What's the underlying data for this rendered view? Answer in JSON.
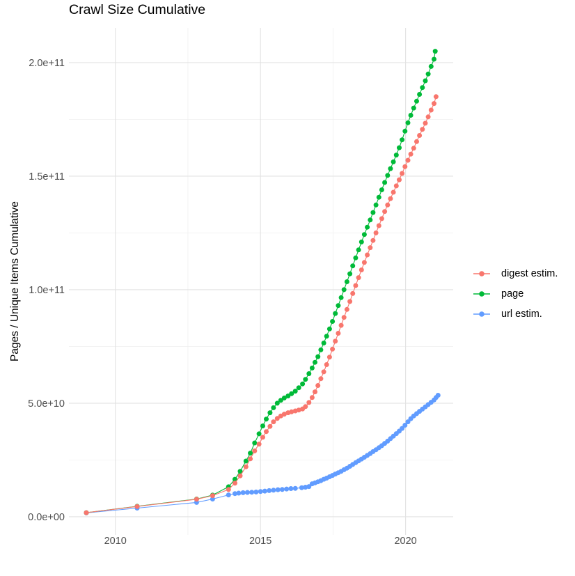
{
  "chart_data": {
    "type": "line",
    "title": "Crawl Size Cumulative",
    "ylabel": "Pages / Unique Items Cumulative",
    "xlabel": "",
    "grid": "on",
    "legend_position": "right",
    "value_unit": "1e9",
    "x_axis": {
      "range": [
        2008.4,
        2021.64
      ],
      "ticks": [
        {
          "value": 2010,
          "label": "2010"
        },
        {
          "value": 2015,
          "label": "2015"
        },
        {
          "value": 2020,
          "label": "2020"
        }
      ],
      "minor": [
        2012.5,
        2017.5
      ]
    },
    "y_axis": {
      "range": [
        -8,
        215.3
      ],
      "ticks": [
        {
          "value": 0,
          "label": "0.0e+00"
        },
        {
          "value": 50,
          "label": "5.0e+10"
        },
        {
          "value": 100,
          "label": "1.0e+11"
        },
        {
          "value": 150,
          "label": "1.5e+11"
        },
        {
          "value": 200,
          "label": "2.0e+11"
        }
      ],
      "minor": [
        25,
        75,
        125,
        175
      ]
    },
    "series": [
      {
        "name": "digest estim.",
        "color": "#F8766D",
        "points": [
          [
            2009.0,
            1.8
          ],
          [
            2010.75,
            4.5
          ],
          [
            2012.8,
            7.7
          ],
          [
            2013.35,
            9.3
          ],
          [
            2013.9,
            12.0
          ],
          [
            2014.12,
            14.8
          ],
          [
            2014.3,
            18.0
          ],
          [
            2014.5,
            22.0
          ],
          [
            2014.65,
            25.5
          ],
          [
            2014.8,
            29.0
          ],
          [
            2014.95,
            32.0
          ],
          [
            2015.08,
            35.0
          ],
          [
            2015.2,
            37.5
          ],
          [
            2015.33,
            39.8
          ],
          [
            2015.45,
            41.8
          ],
          [
            2015.58,
            43.3
          ],
          [
            2015.7,
            44.4
          ],
          [
            2015.82,
            45.2
          ],
          [
            2015.95,
            45.8
          ],
          [
            2016.07,
            46.2
          ],
          [
            2016.2,
            46.6
          ],
          [
            2016.32,
            47.0
          ],
          [
            2016.45,
            47.5
          ],
          [
            2016.55,
            48.5
          ],
          [
            2016.67,
            50.3
          ],
          [
            2016.78,
            52.5
          ],
          [
            2016.88,
            55.0
          ],
          [
            2016.98,
            57.8
          ],
          [
            2017.08,
            60.8
          ],
          [
            2017.18,
            63.8
          ],
          [
            2017.28,
            67.0
          ],
          [
            2017.38,
            70.3
          ],
          [
            2017.48,
            73.8
          ],
          [
            2017.58,
            77.3
          ],
          [
            2017.68,
            80.8
          ],
          [
            2017.78,
            84.3
          ],
          [
            2017.88,
            87.8
          ],
          [
            2017.98,
            91.3
          ],
          [
            2018.08,
            94.8
          ],
          [
            2018.18,
            98.3
          ],
          [
            2018.28,
            101.8
          ],
          [
            2018.38,
            105.3
          ],
          [
            2018.48,
            108.7
          ],
          [
            2018.58,
            112.0
          ],
          [
            2018.68,
            115.3
          ],
          [
            2018.78,
            118.5
          ],
          [
            2018.88,
            121.7
          ],
          [
            2018.98,
            125.0
          ],
          [
            2019.08,
            128.2
          ],
          [
            2019.18,
            131.3
          ],
          [
            2019.28,
            134.4
          ],
          [
            2019.38,
            137.3
          ],
          [
            2019.48,
            140.1
          ],
          [
            2019.58,
            142.9
          ],
          [
            2019.68,
            145.7
          ],
          [
            2019.78,
            148.4
          ],
          [
            2019.88,
            151.2
          ],
          [
            2019.98,
            154.2
          ],
          [
            2020.08,
            157.0
          ],
          [
            2020.18,
            159.7
          ],
          [
            2020.28,
            162.3
          ],
          [
            2020.38,
            165.2
          ],
          [
            2020.48,
            167.9
          ],
          [
            2020.58,
            170.6
          ],
          [
            2020.68,
            173.3
          ],
          [
            2020.78,
            176.1
          ],
          [
            2020.88,
            179.1
          ],
          [
            2020.98,
            182.0
          ],
          [
            2021.05,
            185.0
          ]
        ]
      },
      {
        "name": "page",
        "color": "#00BA38",
        "points": [
          [
            2009.0,
            1.8
          ],
          [
            2010.75,
            4.6
          ],
          [
            2012.8,
            7.8
          ],
          [
            2013.35,
            9.5
          ],
          [
            2013.9,
            13.2
          ],
          [
            2014.12,
            16.5
          ],
          [
            2014.3,
            20.0
          ],
          [
            2014.5,
            24.5
          ],
          [
            2014.65,
            28.0
          ],
          [
            2014.8,
            32.5
          ],
          [
            2014.95,
            36.5
          ],
          [
            2015.08,
            40.0
          ],
          [
            2015.2,
            43.0
          ],
          [
            2015.33,
            45.8
          ],
          [
            2015.45,
            48.0
          ],
          [
            2015.58,
            50.0
          ],
          [
            2015.7,
            51.3
          ],
          [
            2015.82,
            52.3
          ],
          [
            2015.95,
            53.2
          ],
          [
            2016.07,
            54.2
          ],
          [
            2016.2,
            55.3
          ],
          [
            2016.32,
            56.8
          ],
          [
            2016.45,
            58.5
          ],
          [
            2016.55,
            60.5
          ],
          [
            2016.67,
            63.0
          ],
          [
            2016.78,
            65.5
          ],
          [
            2016.88,
            68.0
          ],
          [
            2016.98,
            70.5
          ],
          [
            2017.08,
            73.5
          ],
          [
            2017.18,
            76.5
          ],
          [
            2017.28,
            79.5
          ],
          [
            2017.38,
            82.7
          ],
          [
            2017.48,
            86.0
          ],
          [
            2017.58,
            89.5
          ],
          [
            2017.68,
            93.0
          ],
          [
            2017.78,
            96.5
          ],
          [
            2017.88,
            100.0
          ],
          [
            2017.98,
            103.5
          ],
          [
            2018.08,
            107.0
          ],
          [
            2018.18,
            110.5
          ],
          [
            2018.28,
            114.0
          ],
          [
            2018.38,
            117.5
          ],
          [
            2018.48,
            121.0
          ],
          [
            2018.58,
            124.3
          ],
          [
            2018.68,
            127.5
          ],
          [
            2018.78,
            130.7
          ],
          [
            2018.88,
            134.0
          ],
          [
            2018.98,
            137.3
          ],
          [
            2019.08,
            140.7
          ],
          [
            2019.18,
            144.0
          ],
          [
            2019.28,
            147.2
          ],
          [
            2019.38,
            150.3
          ],
          [
            2019.48,
            153.3
          ],
          [
            2019.58,
            156.3
          ],
          [
            2019.68,
            159.3
          ],
          [
            2019.78,
            162.5
          ],
          [
            2019.88,
            166.0
          ],
          [
            2019.98,
            169.8
          ],
          [
            2020.08,
            173.5
          ],
          [
            2020.18,
            176.8
          ],
          [
            2020.28,
            180.0
          ],
          [
            2020.38,
            183.0
          ],
          [
            2020.48,
            186.0
          ],
          [
            2020.58,
            189.0
          ],
          [
            2020.68,
            192.0
          ],
          [
            2020.78,
            195.0
          ],
          [
            2020.88,
            198.3
          ],
          [
            2020.98,
            201.5
          ],
          [
            2021.02,
            205.0
          ]
        ]
      },
      {
        "name": "url estim.",
        "color": "#619CFF",
        "points": [
          [
            2009.0,
            1.7
          ],
          [
            2010.75,
            3.8
          ],
          [
            2012.8,
            6.3
          ],
          [
            2013.35,
            7.8
          ],
          [
            2013.9,
            9.6
          ],
          [
            2014.12,
            10.2
          ],
          [
            2014.25,
            10.4
          ],
          [
            2014.4,
            10.6
          ],
          [
            2014.55,
            10.7
          ],
          [
            2014.7,
            10.8
          ],
          [
            2014.85,
            10.9
          ],
          [
            2015.0,
            11.1
          ],
          [
            2015.15,
            11.3
          ],
          [
            2015.3,
            11.5
          ],
          [
            2015.45,
            11.7
          ],
          [
            2015.6,
            11.9
          ],
          [
            2015.75,
            12.0
          ],
          [
            2015.9,
            12.2
          ],
          [
            2016.05,
            12.4
          ],
          [
            2016.2,
            12.5
          ],
          [
            2016.42,
            12.8
          ],
          [
            2016.55,
            13.0
          ],
          [
            2016.67,
            13.3
          ],
          [
            2016.78,
            14.5
          ],
          [
            2016.88,
            14.9
          ],
          [
            2016.98,
            15.4
          ],
          [
            2017.08,
            15.9
          ],
          [
            2017.18,
            16.5
          ],
          [
            2017.28,
            17.0
          ],
          [
            2017.38,
            17.6
          ],
          [
            2017.48,
            18.2
          ],
          [
            2017.58,
            18.8
          ],
          [
            2017.68,
            19.4
          ],
          [
            2017.78,
            20.0
          ],
          [
            2017.88,
            20.7
          ],
          [
            2017.98,
            21.4
          ],
          [
            2018.08,
            22.2
          ],
          [
            2018.18,
            23.0
          ],
          [
            2018.28,
            23.8
          ],
          [
            2018.38,
            24.6
          ],
          [
            2018.48,
            25.4
          ],
          [
            2018.58,
            26.2
          ],
          [
            2018.68,
            27.0
          ],
          [
            2018.78,
            27.8
          ],
          [
            2018.88,
            28.7
          ],
          [
            2018.98,
            29.5
          ],
          [
            2019.08,
            30.4
          ],
          [
            2019.18,
            31.3
          ],
          [
            2019.28,
            32.3
          ],
          [
            2019.38,
            33.3
          ],
          [
            2019.48,
            34.4
          ],
          [
            2019.58,
            35.5
          ],
          [
            2019.68,
            36.6
          ],
          [
            2019.78,
            37.7
          ],
          [
            2019.88,
            38.9
          ],
          [
            2019.98,
            40.3
          ],
          [
            2020.08,
            41.8
          ],
          [
            2020.18,
            43.2
          ],
          [
            2020.28,
            44.4
          ],
          [
            2020.38,
            45.4
          ],
          [
            2020.48,
            46.4
          ],
          [
            2020.58,
            47.4
          ],
          [
            2020.68,
            48.4
          ],
          [
            2020.78,
            49.4
          ],
          [
            2020.88,
            50.4
          ],
          [
            2020.98,
            51.4
          ],
          [
            2021.05,
            52.5
          ],
          [
            2021.12,
            53.5
          ]
        ]
      }
    ],
    "style": {
      "grid_major_color": "#E2E2E2",
      "grid_minor_color": "#EFEFEF",
      "axis_text_color": "#4D4D4D",
      "background": "#FFFFFF"
    }
  }
}
